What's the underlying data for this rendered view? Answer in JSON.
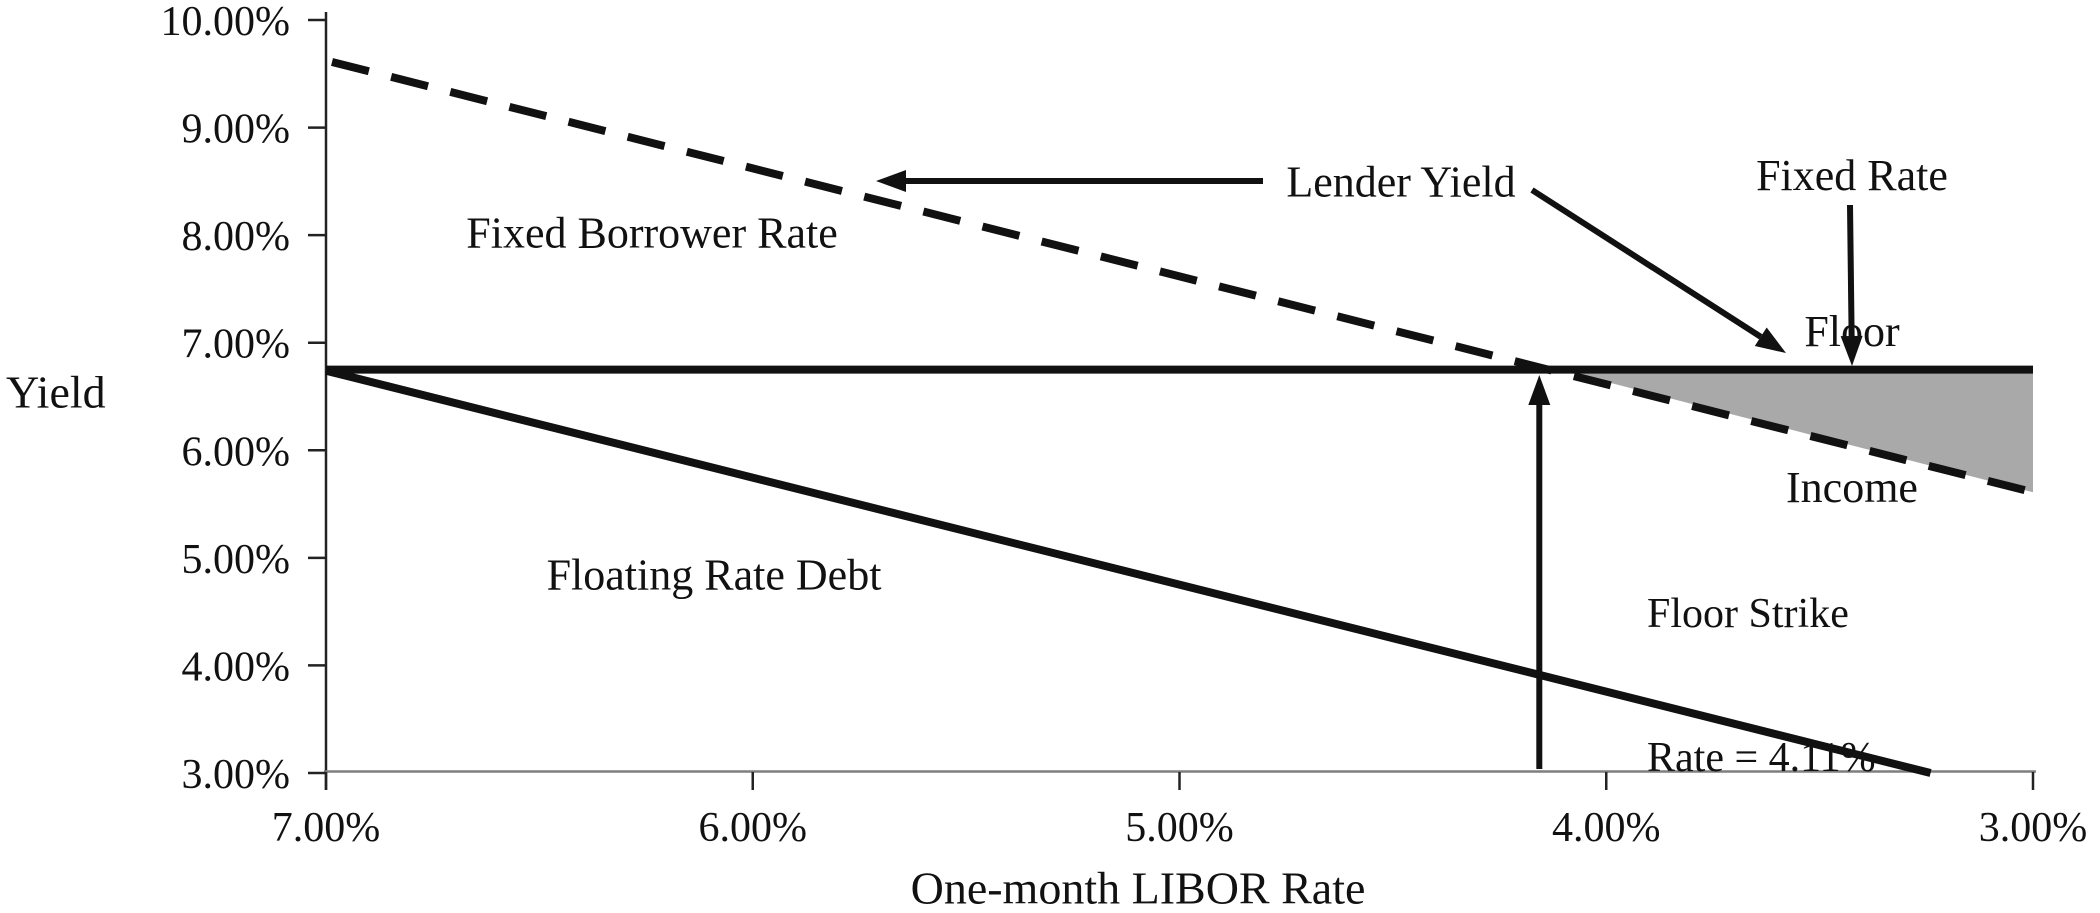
{
  "chart_data": {
    "type": "line",
    "title": "",
    "xlabel": "One-month LIBOR Rate",
    "ylabel": "Yield",
    "x_axis": {
      "range": [
        7.0,
        3.0
      ],
      "reversed": true,
      "ticks": [
        7,
        6,
        5,
        4,
        3
      ],
      "tick_labels": [
        "7.00%",
        "6.00%",
        "5.00%",
        "4.00%",
        "3.00%"
      ]
    },
    "y_axis": {
      "range": [
        3.0,
        10.0
      ],
      "ticks": [
        10,
        9,
        8,
        7,
        6,
        5,
        4,
        3
      ],
      "tick_labels": [
        "10.00%",
        "9.00%",
        "8.00%",
        "7.00%",
        "6.00%",
        "5.00%",
        "4.00%",
        "3.00%"
      ]
    },
    "grid": false,
    "legend": "none (inline annotations with arrows)",
    "series": [
      {
        "name": "Lender Yield",
        "style": "dashed",
        "color": "#111111",
        "points": [
          [
            7.0,
            9.61
          ],
          [
            3.0,
            5.61
          ]
        ]
      },
      {
        "name": "Fixed Borrower Rate (floored lender yield)",
        "style": "solid",
        "color": "#111111",
        "points": [
          [
            7.0,
            6.75
          ],
          [
            3.0,
            6.75
          ]
        ]
      },
      {
        "name": "Floating Rate Debt",
        "style": "solid",
        "color": "#111111",
        "points": [
          [
            7.0,
            6.74
          ],
          [
            3.24,
            3.0
          ]
        ]
      }
    ],
    "shaded_region": {
      "name": "Fixed Rate Floor Income",
      "color": "#a9a9a9",
      "points": [
        [
          4.11,
          6.75
        ],
        [
          3.0,
          6.75
        ],
        [
          3.0,
          5.61
        ]
      ]
    },
    "floor_strike_libor": 4.11,
    "annotations": {
      "fixed_borrower_rate": "Fixed Borrower Rate",
      "floating_rate_debt": "Floating Rate Debt",
      "lender_yield": "Lender Yield",
      "fixed_rate_floor_income_lines": [
        "Fixed Rate",
        "Floor",
        "Income"
      ],
      "floor_strike_lines": [
        "Floor Strike",
        "Rate = 4.11%"
      ]
    },
    "axis_colors": {
      "x_axis_line": "#7f7f7f",
      "y_axis_line": "#222222",
      "tick_marks": "#222222"
    }
  }
}
